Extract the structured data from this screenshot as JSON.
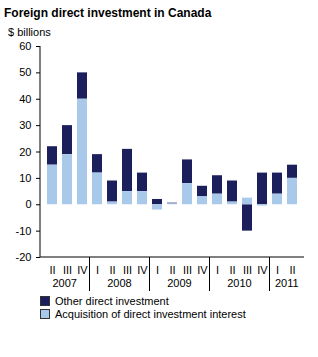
{
  "chart_data": {
    "type": "bar",
    "title": "Foreign direct investment in Canada",
    "y_label": "$ billions",
    "categories": [
      "II",
      "III",
      "IV",
      "I",
      "II",
      "III",
      "IV",
      "I",
      "II",
      "III",
      "IV",
      "I",
      "II",
      "III",
      "IV",
      "I",
      "II"
    ],
    "groups": [
      {
        "label": "2007",
        "count": 3
      },
      {
        "label": "2008",
        "count": 4
      },
      {
        "label": "2009",
        "count": 4
      },
      {
        "label": "2010",
        "count": 4
      },
      {
        "label": "2011",
        "count": 2
      }
    ],
    "series": [
      {
        "name": "Other direct investment",
        "color": "#1b1f5c",
        "values": [
          7,
          11,
          10,
          7,
          8,
          16,
          7,
          2,
          0.3,
          9,
          4,
          7,
          8,
          -10,
          12,
          8,
          5
        ]
      },
      {
        "name": "Acquisition of direct investment interest",
        "color": "#a9c9ea",
        "values": [
          15,
          19,
          40,
          12,
          1,
          5,
          5,
          -2,
          0.3,
          8,
          3,
          4,
          1,
          2.5,
          -0.5,
          4,
          10
        ]
      }
    ],
    "stacked": true,
    "ylim": [
      -20,
      60
    ],
    "yticks": [
      -20,
      -10,
      0,
      10,
      20,
      30,
      40,
      50,
      60
    ],
    "grid": false,
    "legend": "bottom"
  }
}
